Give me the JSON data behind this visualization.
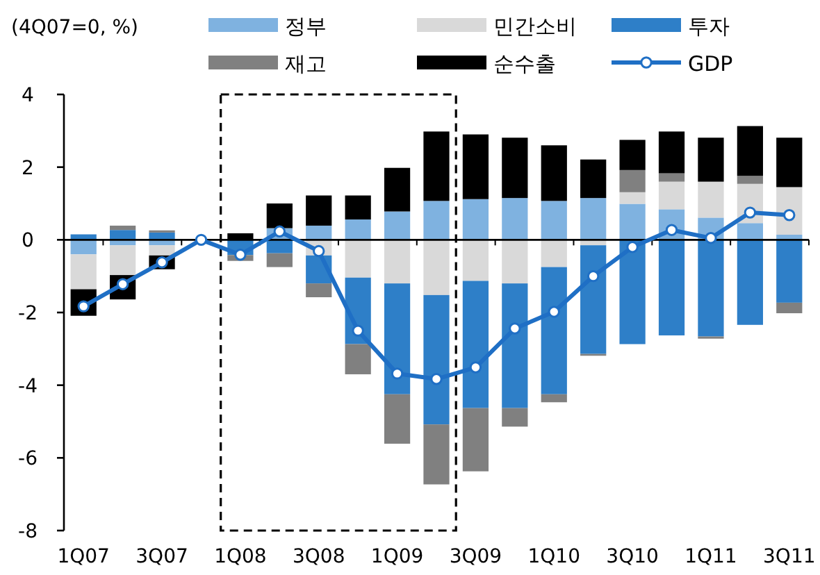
{
  "chart_data": {
    "type": "bar",
    "stacked": true,
    "ylabel": "(4Q07=0,  %)",
    "categories": [
      "1Q07",
      null,
      "3Q07",
      null,
      "1Q08",
      null,
      "3Q08",
      null,
      "1Q09",
      null,
      "3Q09",
      null,
      "1Q10",
      null,
      "3Q10",
      null,
      "1Q11",
      null,
      "3Q11"
    ],
    "series": [
      {
        "name": "정부",
        "color": "#7fb2e0",
        "values": [
          -0.4,
          -0.15,
          -0.15,
          0,
          0,
          0.32,
          0.39,
          0.56,
          0.78,
          1.07,
          1.12,
          1.15,
          1.07,
          1.15,
          0.99,
          0.84,
          0.61,
          0.46,
          0.14
        ]
      },
      {
        "name": "민간소비",
        "color": "#d9d9d9",
        "values": [
          -0.96,
          -0.82,
          -0.28,
          0,
          0,
          0,
          -0.43,
          -1.04,
          -1.2,
          -1.52,
          -1.13,
          -1.2,
          -0.75,
          -0.15,
          0.32,
          0.76,
          0.99,
          1.08,
          1.31
        ]
      },
      {
        "name": "투자",
        "color": "#2e7fc8",
        "values": [
          0.15,
          0.27,
          0.2,
          0,
          -0.42,
          -0.37,
          -0.77,
          -1.83,
          -3.05,
          -3.56,
          -3.5,
          -3.43,
          -3.5,
          -2.99,
          -2.87,
          -2.63,
          -2.66,
          -2.34,
          -1.73
        ]
      },
      {
        "name": "재고",
        "color": "#808080",
        "values": [
          0,
          0.12,
          0.06,
          0,
          -0.16,
          -0.38,
          -0.38,
          -0.83,
          -1.36,
          -1.65,
          -1.74,
          -0.51,
          -0.22,
          -0.05,
          0.61,
          0.23,
          -0.06,
          0.22,
          -0.29
        ]
      },
      {
        "name": "순수출",
        "color": "#000000",
        "values": [
          -0.73,
          -0.67,
          -0.38,
          0,
          0.18,
          0.68,
          0.83,
          0.66,
          1.2,
          1.91,
          1.78,
          1.66,
          1.53,
          1.06,
          0.83,
          1.15,
          1.21,
          1.37,
          1.36
        ]
      },
      {
        "name": "GDP",
        "type": "line",
        "color": "#1f6fc5",
        "values": [
          -1.83,
          -1.22,
          -0.62,
          0,
          -0.41,
          0.23,
          -0.31,
          -2.5,
          -3.68,
          -3.83,
          -3.51,
          -2.44,
          -1.98,
          -1.0,
          -0.2,
          0.27,
          0.05,
          0.75,
          0.68
        ]
      }
    ],
    "marker": "circle",
    "ylim": [
      -8,
      4
    ],
    "yticks": [
      -8,
      -6,
      -4,
      -2,
      0,
      2,
      4
    ],
    "legend": "top"
  }
}
